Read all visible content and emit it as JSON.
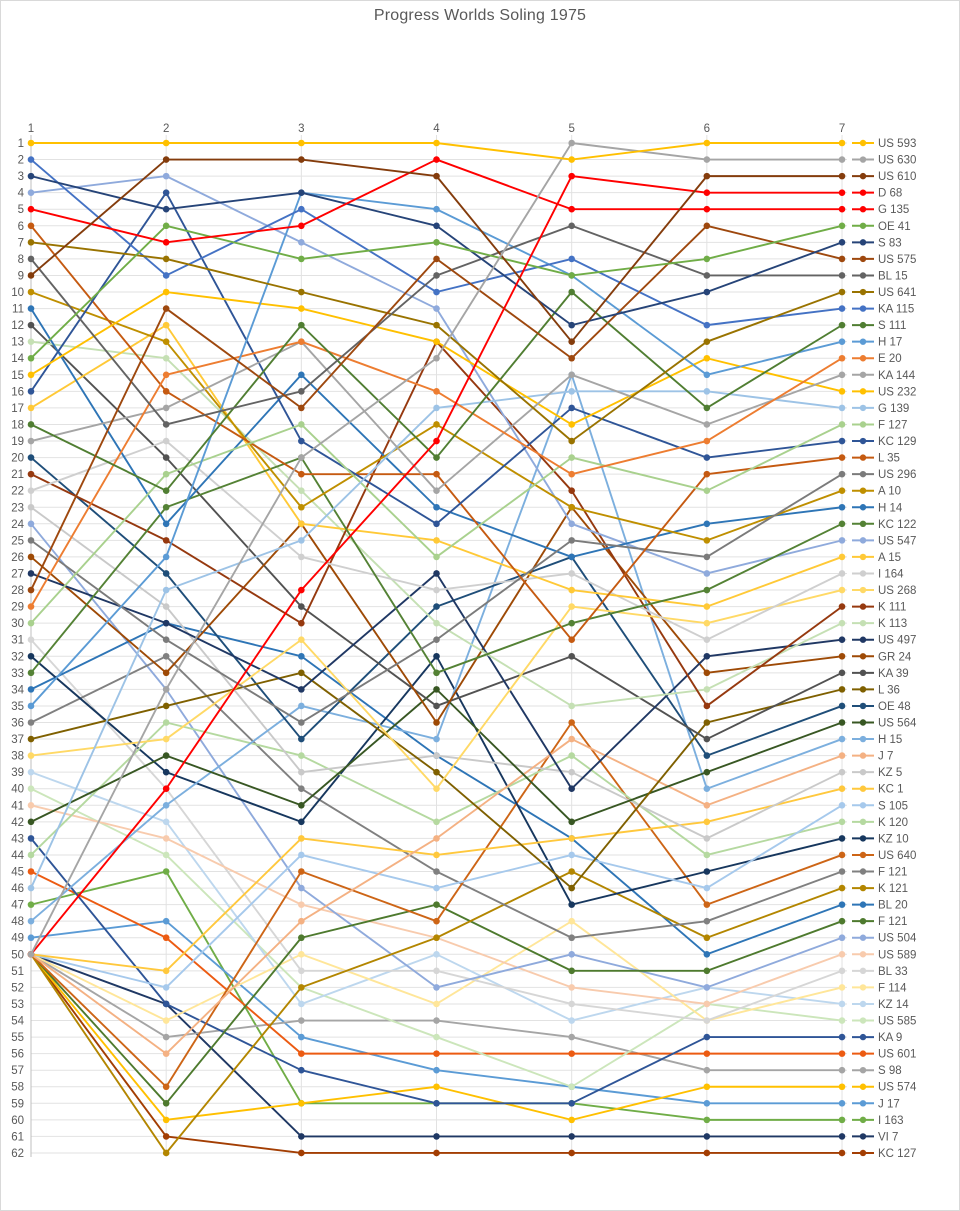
{
  "title": "Progress Worlds Soling 1975",
  "styles": {
    "text_color": "#595959",
    "grid_color": "#e2e2e2",
    "axis_color": "#bfbfbf",
    "background": "#ffffff",
    "highlight_red": "#ff0000"
  },
  "chart_data": {
    "type": "line",
    "title": "Progress Worlds Soling 1975",
    "xlabel": "",
    "ylabel": "",
    "x": [
      1,
      2,
      3,
      4,
      5,
      6,
      7
    ],
    "x_ticks": [
      "1",
      "2",
      "3",
      "4",
      "5",
      "6",
      "7"
    ],
    "y_axis": {
      "min": 1,
      "max": 62,
      "inverted": true,
      "tick_step": 1
    },
    "grid": true,
    "legend_position": "right",
    "marker": "circle",
    "series": [
      {
        "name": "US 593",
        "color": "#FFC000",
        "ranks": [
          1,
          1,
          1,
          1,
          2,
          1,
          1
        ]
      },
      {
        "name": "US 630",
        "color": "#A5A5A5",
        "ranks": [
          50,
          34,
          20,
          14,
          1,
          2,
          2
        ]
      },
      {
        "name": "US 610",
        "color": "#843C0C",
        "ranks": [
          9,
          2,
          2,
          3,
          13,
          3,
          3
        ]
      },
      {
        "name": "D 68",
        "color": "#FF0000",
        "ranks": [
          50,
          40,
          28,
          19,
          3,
          4,
          4
        ]
      },
      {
        "name": "G 135",
        "color": "#FF0000",
        "ranks": [
          5,
          7,
          6,
          2,
          5,
          5,
          5
        ]
      },
      {
        "name": "OE 41",
        "color": "#70AD47",
        "ranks": [
          14,
          6,
          8,
          7,
          9,
          8,
          6
        ]
      },
      {
        "name": "S 83",
        "color": "#264478",
        "ranks": [
          3,
          5,
          4,
          6,
          12,
          10,
          7
        ]
      },
      {
        "name": "US 575",
        "color": "#9E480E",
        "ranks": [
          28,
          11,
          17,
          8,
          14,
          6,
          8
        ]
      },
      {
        "name": "BL 15",
        "color": "#636363",
        "ranks": [
          8,
          18,
          16,
          9,
          6,
          9,
          9
        ]
      },
      {
        "name": "US 641",
        "color": "#997300",
        "ranks": [
          7,
          8,
          10,
          12,
          19,
          13,
          10
        ]
      },
      {
        "name": "KA 115",
        "color": "#4472C4",
        "ranks": [
          2,
          9,
          5,
          10,
          8,
          12,
          11
        ]
      },
      {
        "name": "S 111",
        "color": "#507E32",
        "ranks": [
          18,
          22,
          12,
          20,
          10,
          17,
          12
        ]
      },
      {
        "name": "H 17",
        "color": "#5B9BD5",
        "ranks": [
          35,
          26,
          4,
          5,
          9,
          15,
          13
        ]
      },
      {
        "name": "E 20",
        "color": "#ED7D31",
        "ranks": [
          29,
          15,
          13,
          16,
          21,
          19,
          14
        ]
      },
      {
        "name": "KA 144",
        "color": "#A5A5A5",
        "ranks": [
          19,
          17,
          13,
          22,
          15,
          18,
          15
        ]
      },
      {
        "name": "US 232",
        "color": "#FFC000",
        "ranks": [
          15,
          10,
          11,
          13,
          18,
          14,
          16
        ]
      },
      {
        "name": "G 139",
        "color": "#9DC3E6",
        "ranks": [
          46,
          28,
          25,
          17,
          16,
          16,
          17
        ]
      },
      {
        "name": "F 127",
        "color": "#A9D18E",
        "ranks": [
          30,
          21,
          18,
          26,
          20,
          22,
          18
        ]
      },
      {
        "name": "KC 129",
        "color": "#2F5597",
        "ranks": [
          16,
          4,
          19,
          24,
          17,
          20,
          19
        ]
      },
      {
        "name": "L 35",
        "color": "#C55A11",
        "ranks": [
          6,
          16,
          21,
          21,
          31,
          21,
          20
        ]
      },
      {
        "name": "US 296",
        "color": "#7B7B7B",
        "ranks": [
          25,
          31,
          36,
          31,
          25,
          26,
          21
        ]
      },
      {
        "name": "A 10",
        "color": "#BF8F00",
        "ranks": [
          10,
          13,
          23,
          18,
          23,
          25,
          22
        ]
      },
      {
        "name": "H 14",
        "color": "#2E75B6",
        "ranks": [
          11,
          24,
          15,
          23,
          26,
          24,
          23
        ]
      },
      {
        "name": "KC 122",
        "color": "#548235",
        "ranks": [
          33,
          23,
          20,
          33,
          30,
          28,
          24
        ]
      },
      {
        "name": "US 547",
        "color": "#8FAADC",
        "ranks": [
          4,
          3,
          7,
          11,
          24,
          27,
          25
        ]
      },
      {
        "name": "A 15",
        "color": "#FFC937",
        "ranks": [
          17,
          12,
          24,
          25,
          28,
          29,
          26
        ]
      },
      {
        "name": "I 164",
        "color": "#CFCFCF",
        "ranks": [
          22,
          19,
          26,
          28,
          27,
          31,
          27
        ]
      },
      {
        "name": "US 268",
        "color": "#FFD966",
        "ranks": [
          38,
          37,
          31,
          40,
          29,
          30,
          28
        ]
      },
      {
        "name": "K 111",
        "color": "#96390F",
        "ranks": [
          21,
          25,
          30,
          13,
          22,
          35,
          29
        ]
      },
      {
        "name": "K 113",
        "color": "#C5E0B4",
        "ranks": [
          13,
          14,
          22,
          30,
          35,
          34,
          30
        ]
      },
      {
        "name": "US 497",
        "color": "#203864",
        "ranks": [
          27,
          30,
          34,
          27,
          40,
          32,
          31
        ]
      },
      {
        "name": "GR 24",
        "color": "#9E4A06",
        "ranks": [
          26,
          33,
          24,
          36,
          23,
          33,
          32
        ]
      },
      {
        "name": "KA 39",
        "color": "#525252",
        "ranks": [
          12,
          20,
          29,
          35,
          32,
          37,
          33
        ]
      },
      {
        "name": "L 36",
        "color": "#7F6000",
        "ranks": [
          37,
          35,
          33,
          39,
          46,
          36,
          34
        ]
      },
      {
        "name": "OE 48",
        "color": "#1F4E79",
        "ranks": [
          20,
          27,
          37,
          29,
          26,
          38,
          35
        ]
      },
      {
        "name": "US 564",
        "color": "#385723",
        "ranks": [
          42,
          38,
          41,
          34,
          42,
          39,
          36
        ]
      },
      {
        "name": "H 15",
        "color": "#7CAFDE",
        "ranks": [
          48,
          41,
          35,
          37,
          15,
          40,
          37
        ]
      },
      {
        "name": "J 7",
        "color": "#F4B183",
        "ranks": [
          50,
          56,
          48,
          43,
          37,
          41,
          38
        ]
      },
      {
        "name": "KZ 5",
        "color": "#C9C9C9",
        "ranks": [
          23,
          29,
          39,
          38,
          39,
          43,
          39
        ]
      },
      {
        "name": "KC 1",
        "color": "#FFC83D",
        "ranks": [
          50,
          51,
          43,
          44,
          43,
          42,
          40
        ]
      },
      {
        "name": "S 105",
        "color": "#A6C9EC",
        "ranks": [
          50,
          52,
          44,
          46,
          44,
          46,
          41
        ]
      },
      {
        "name": "K 120",
        "color": "#B5D9A0",
        "ranks": [
          44,
          36,
          38,
          42,
          38,
          44,
          42
        ]
      },
      {
        "name": "KZ 10",
        "color": "#17375E",
        "ranks": [
          32,
          39,
          42,
          32,
          47,
          45,
          43
        ]
      },
      {
        "name": "US 640",
        "color": "#CD6516",
        "ranks": [
          50,
          58,
          45,
          48,
          36,
          47,
          44
        ]
      },
      {
        "name": "F 121",
        "color": "#808080",
        "ranks": [
          36,
          32,
          40,
          45,
          49,
          48,
          45
        ]
      },
      {
        "name": "K 121",
        "color": "#B38600",
        "ranks": [
          50,
          62,
          52,
          49,
          45,
          49,
          46
        ]
      },
      {
        "name": "BL 20",
        "color": "#2E75B6",
        "ranks": [
          34,
          30,
          32,
          38,
          43,
          50,
          47
        ]
      },
      {
        "name": "F 121",
        "color": "#4E7A2E",
        "ranks": [
          50,
          59,
          49,
          47,
          51,
          51,
          48
        ]
      },
      {
        "name": "US 504",
        "color": "#8FAADC",
        "ranks": [
          24,
          34,
          46,
          52,
          50,
          52,
          49
        ]
      },
      {
        "name": "US 589",
        "color": "#F8CBAD",
        "ranks": [
          41,
          43,
          47,
          49,
          52,
          53,
          50
        ]
      },
      {
        "name": "BL 33",
        "color": "#D6D6D6",
        "ranks": [
          31,
          40,
          51,
          51,
          53,
          54,
          51
        ]
      },
      {
        "name": "F 114",
        "color": "#FFE699",
        "ranks": [
          50,
          54,
          50,
          53,
          48,
          54,
          52
        ]
      },
      {
        "name": "KZ 14",
        "color": "#BDD7EE",
        "ranks": [
          39,
          42,
          53,
          50,
          54,
          52,
          53
        ]
      },
      {
        "name": "US 585",
        "color": "#CCE6BB",
        "ranks": [
          40,
          44,
          52,
          55,
          58,
          53,
          54
        ]
      },
      {
        "name": "KA 9",
        "color": "#2F5597",
        "ranks": [
          43,
          53,
          57,
          59,
          59,
          55,
          55
        ]
      },
      {
        "name": "US 601",
        "color": "#EC5B12",
        "ranks": [
          45,
          49,
          56,
          56,
          56,
          56,
          56
        ]
      },
      {
        "name": "S 98",
        "color": "#A5A5A5",
        "ranks": [
          50,
          55,
          54,
          54,
          55,
          57,
          57
        ]
      },
      {
        "name": "US 574",
        "color": "#FFC000",
        "ranks": [
          50,
          60,
          59,
          58,
          60,
          58,
          58
        ]
      },
      {
        "name": "J 17",
        "color": "#5B9BD5",
        "ranks": [
          49,
          48,
          55,
          57,
          58,
          59,
          59
        ]
      },
      {
        "name": "I 163",
        "color": "#70AD47",
        "ranks": [
          47,
          45,
          59,
          59,
          59,
          60,
          60
        ]
      },
      {
        "name": "VI 7",
        "color": "#1F3864",
        "ranks": [
          50,
          53,
          61,
          61,
          61,
          61,
          61
        ]
      },
      {
        "name": "KC 127",
        "color": "#A33E03",
        "ranks": [
          50,
          61,
          62,
          62,
          62,
          62,
          62
        ]
      }
    ]
  }
}
